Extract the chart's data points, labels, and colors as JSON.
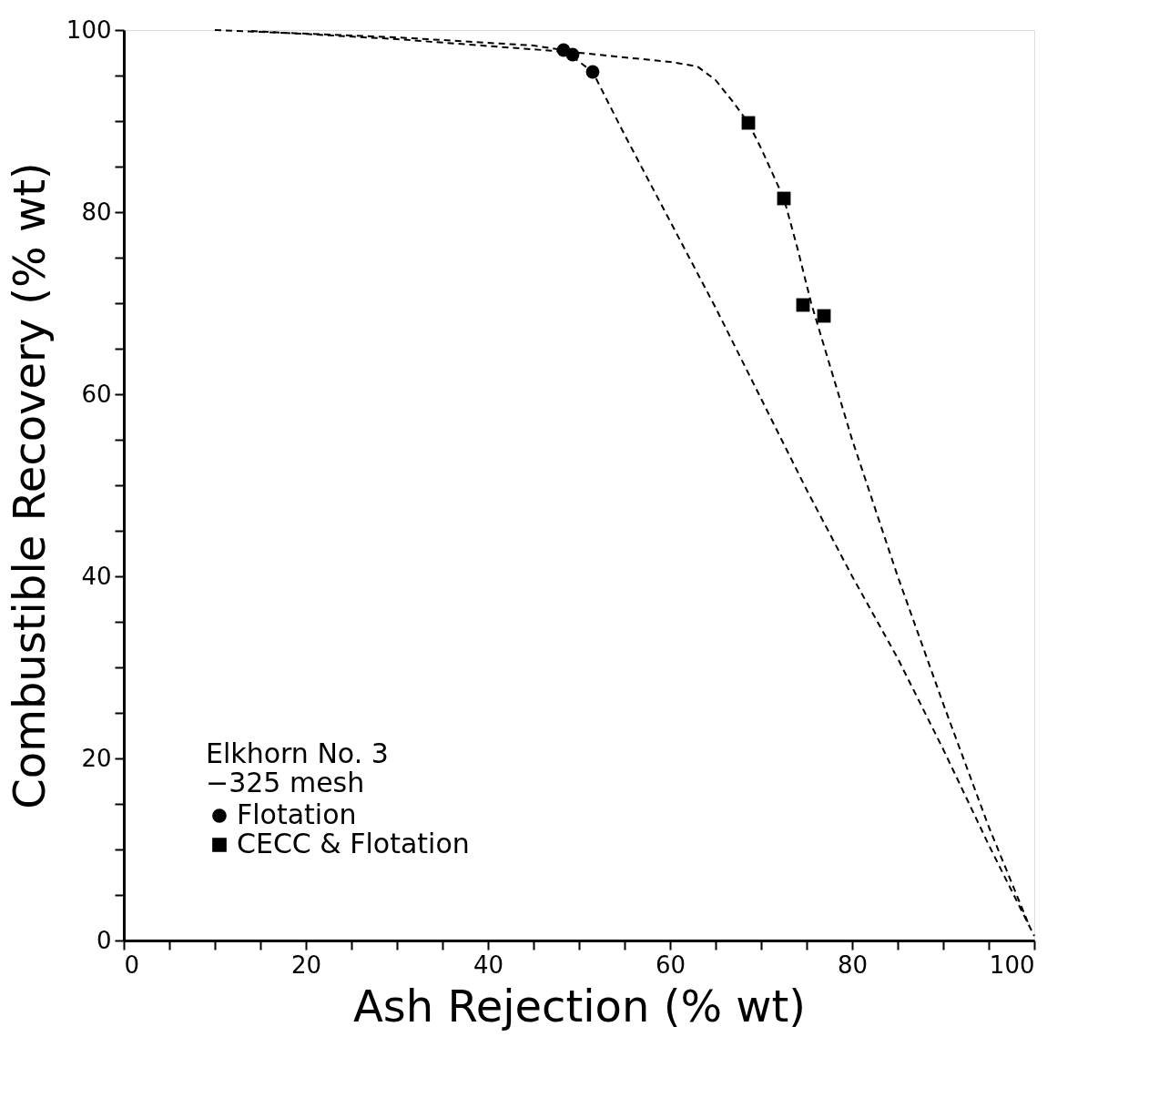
{
  "chart_data": {
    "type": "scatter",
    "xlabel": "Ash Rejection (% wt)",
    "ylabel": "Combustible Recovery (% wt)",
    "legend_title": "Elkhorn No. 3\n−325 mesh",
    "xlim": [
      0,
      100
    ],
    "ylim": [
      0,
      100
    ],
    "xticks": [
      0,
      {
        "value": 5,
        "label": null
      },
      {
        "value": 10,
        "label": null
      },
      {
        "value": 15,
        "label": null
      },
      20,
      {
        "value": 25,
        "label": null
      },
      {
        "value": 30,
        "label": null
      },
      {
        "value": 35,
        "label": null
      },
      40,
      {
        "value": 45,
        "label": null
      },
      {
        "value": 50,
        "label": null
      },
      {
        "value": 55,
        "label": null
      },
      60,
      {
        "value": 65,
        "label": null
      },
      {
        "value": 70,
        "label": null
      },
      {
        "value": 75,
        "label": null
      },
      80,
      {
        "value": 85,
        "label": null
      },
      {
        "value": 90,
        "label": null
      },
      {
        "value": 95,
        "label": null
      },
      100
    ],
    "yticks": [
      0,
      {
        "value": 5,
        "label": null
      },
      {
        "value": 10,
        "label": null
      },
      {
        "value": 15,
        "label": null
      },
      20,
      {
        "value": 25,
        "label": null
      },
      {
        "value": 30,
        "label": null
      },
      {
        "value": 35,
        "label": null
      },
      40,
      {
        "value": 45,
        "label": null
      },
      {
        "value": 50,
        "label": null
      },
      {
        "value": 55,
        "label": null
      },
      60,
      {
        "value": 65,
        "label": null
      },
      {
        "value": 70,
        "label": null
      },
      {
        "value": 75,
        "label": null
      },
      80,
      {
        "value": 85,
        "label": null
      },
      {
        "value": 90,
        "label": null
      },
      {
        "value": 95,
        "label": null
      },
      100
    ],
    "grid": false,
    "legend": "bottom left",
    "series": [
      {
        "name": "Flotation",
        "color": "#000000",
        "marker": "circle",
        "x": [
          48.3,
          49.3,
          51.5
        ],
        "values": [
          97.8,
          97.3,
          95.4
        ]
      },
      {
        "name": "CECC & Flotation",
        "color": "#000000",
        "marker": "square",
        "x": [
          68.6,
          72.5,
          74.6,
          76.9
        ],
        "values": [
          89.8,
          81.5,
          69.8,
          68.6
        ]
      },
      {
        "type": "line",
        "color": "#000000",
        "line_style": "dashed",
        "marker": "none",
        "x": [
          10,
          30,
          45,
          48.3,
          51.5,
          55,
          60,
          65,
          70,
          75,
          80,
          85,
          90,
          95,
          100
        ],
        "values": [
          100,
          99.2,
          98.3,
          97.8,
          95.4,
          88.5,
          79,
          69.5,
          59.5,
          49.5,
          40,
          31,
          21,
          10.5,
          0.5
        ]
      },
      {
        "type": "line",
        "color": "#000000",
        "line_style": "dashed",
        "marker": "none",
        "x": [
          14,
          30,
          50,
          60,
          63,
          65,
          67,
          68.6,
          70,
          72.5,
          74,
          75.5,
          77,
          80,
          85,
          90,
          95,
          99.5
        ],
        "values": [
          99.9,
          99,
          97.5,
          96.5,
          96,
          94.5,
          92,
          89.8,
          87,
          81.5,
          76,
          70,
          65,
          55,
          40,
          26,
          12.5,
          1.5
        ]
      }
    ]
  }
}
